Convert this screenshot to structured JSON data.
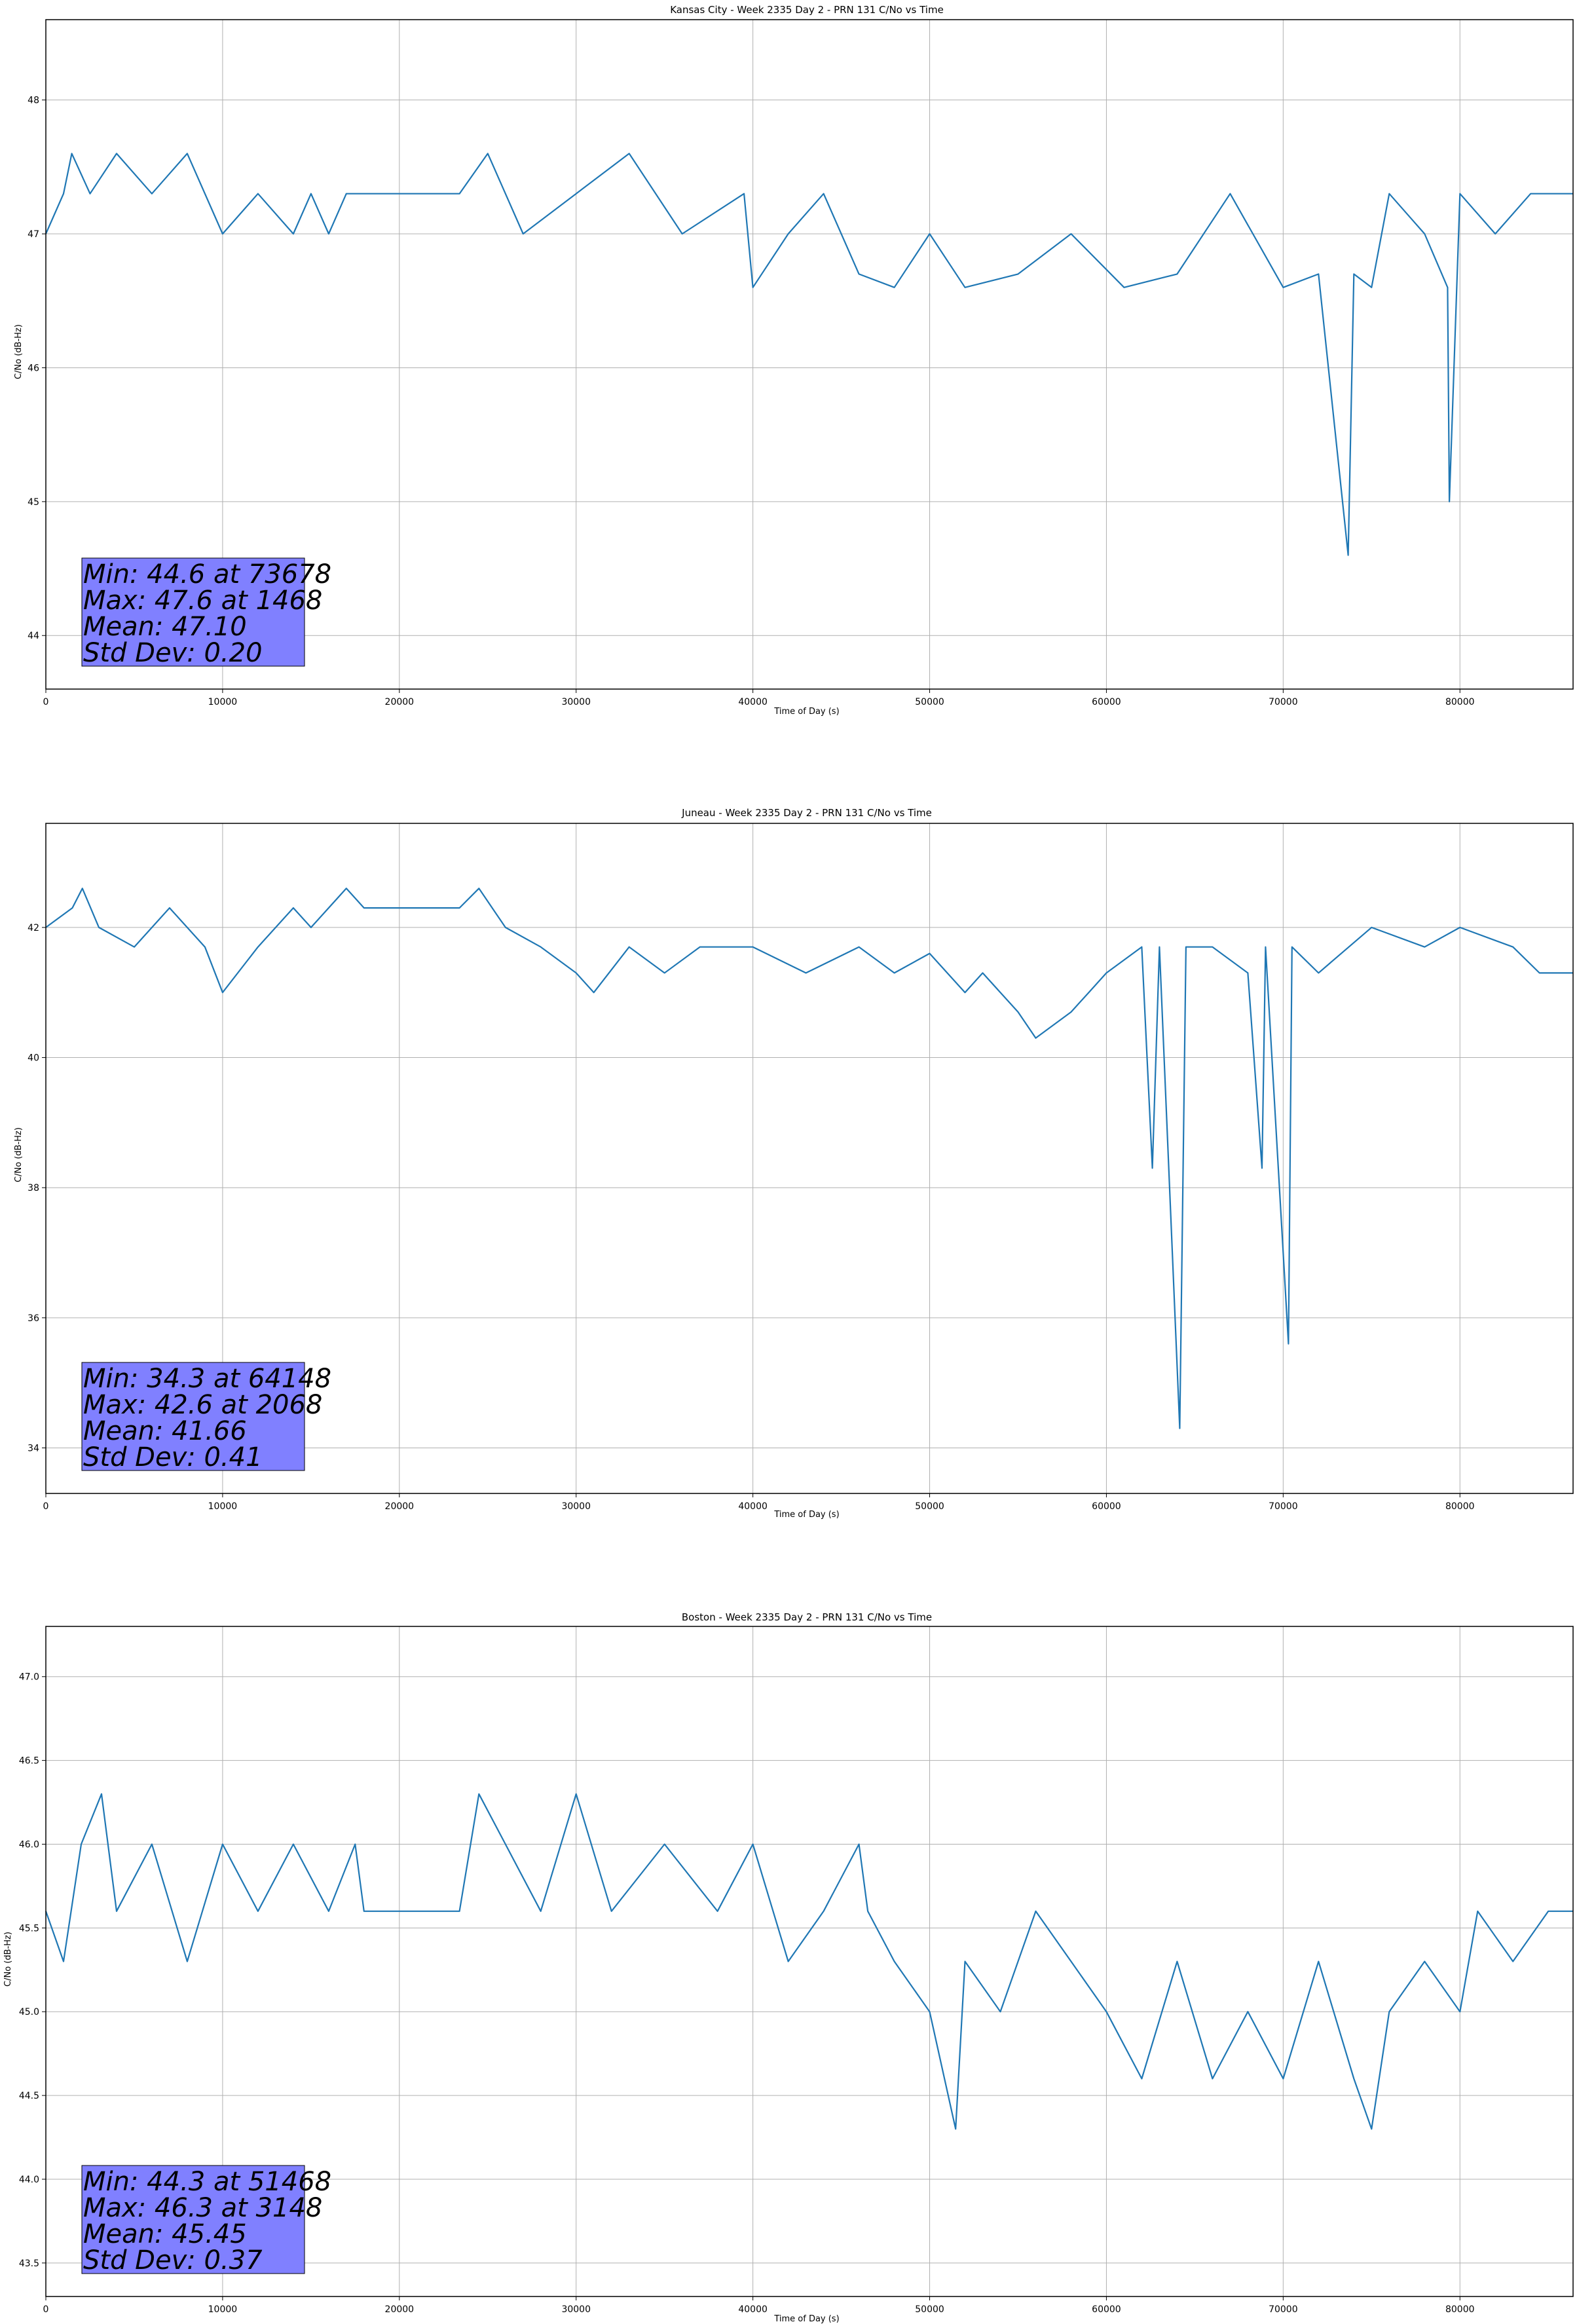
{
  "chart_data": [
    {
      "type": "line",
      "title": "Kansas City - Week 2335 Day 2 - PRN 131 C/No vs Time",
      "xlabel": "Time of Day (s)",
      "ylabel": "C/No (dB-Hz)",
      "xlim": [
        0,
        86400
      ],
      "ylim": [
        43.6,
        48.6
      ],
      "xticks": [
        0,
        10000,
        20000,
        30000,
        40000,
        50000,
        60000,
        70000,
        80000
      ],
      "yticks": [
        44,
        45,
        46,
        47,
        48
      ],
      "grid": true,
      "line_color": "#1f77b4",
      "stats_box_color": "#8080ff",
      "stats": [
        "Min: 44.6 at 73678",
        "Max: 47.6 at 1468",
        "Mean: 47.10",
        "Std Dev: 0.20"
      ],
      "series": [
        {
          "x": [
            0,
            1000,
            1468,
            2500,
            4000,
            6000,
            8000,
            10000,
            12000,
            14000,
            15000,
            16000,
            17000,
            18000,
            20000,
            22000,
            23400,
            25000,
            27000,
            30000,
            33000,
            36000,
            39500,
            40000,
            42000,
            44000,
            46000,
            48000,
            50000,
            52000,
            55000,
            58000,
            61000,
            64000,
            67000,
            70000,
            72000,
            73678,
            74000,
            75000,
            76000,
            78000,
            79300,
            79400,
            80000,
            82000,
            84000,
            86400
          ],
          "y": [
            47.0,
            47.3,
            47.6,
            47.3,
            47.6,
            47.3,
            47.6,
            47.0,
            47.3,
            47.0,
            47.3,
            47.0,
            47.3,
            47.3,
            47.3,
            47.3,
            47.3,
            47.6,
            47.0,
            47.3,
            47.6,
            47.0,
            47.3,
            46.6,
            47.0,
            47.3,
            46.7,
            46.6,
            47.0,
            46.6,
            46.7,
            47.0,
            46.6,
            46.7,
            47.3,
            46.6,
            46.7,
            44.6,
            46.7,
            46.6,
            47.3,
            47.0,
            46.6,
            45.0,
            47.3,
            47.0,
            47.3,
            47.3
          ]
        }
      ]
    },
    {
      "type": "line",
      "title": "Juneau - Week 2335 Day 2 - PRN 131 C/No vs Time",
      "xlabel": "Time of Day (s)",
      "ylabel": "C/No (dB-Hz)",
      "xlim": [
        0,
        86400
      ],
      "ylim": [
        33.3,
        43.6
      ],
      "xticks": [
        0,
        10000,
        20000,
        30000,
        40000,
        50000,
        60000,
        70000,
        80000
      ],
      "yticks": [
        34,
        36,
        38,
        40,
        42
      ],
      "grid": true,
      "line_color": "#1f77b4",
      "stats_box_color": "#8080ff",
      "stats": [
        "Min: 34.3 at 64148",
        "Max: 42.6 at 2068",
        "Mean: 41.66",
        "Std Dev: 0.41"
      ],
      "series": [
        {
          "x": [
            0,
            1500,
            2068,
            3000,
            5000,
            7000,
            9000,
            10000,
            12000,
            14000,
            15000,
            17000,
            18000,
            20000,
            23400,
            24500,
            26000,
            28000,
            30000,
            31000,
            33000,
            35000,
            37000,
            40000,
            43000,
            46000,
            48000,
            50000,
            52000,
            53000,
            55000,
            56000,
            58000,
            59000,
            60000,
            62000,
            62600,
            63000,
            64148,
            64500,
            66000,
            68000,
            68800,
            69000,
            70300,
            70500,
            72000,
            75000,
            78000,
            80000,
            83000,
            84500,
            86400
          ],
          "y": [
            42.0,
            42.3,
            42.6,
            42.0,
            41.7,
            42.3,
            41.7,
            41.0,
            41.7,
            42.3,
            42.0,
            42.6,
            42.3,
            42.3,
            42.3,
            42.6,
            42.0,
            41.7,
            41.3,
            41.0,
            41.7,
            41.3,
            41.7,
            41.7,
            41.3,
            41.7,
            41.3,
            41.6,
            41.0,
            41.3,
            40.7,
            40.3,
            40.7,
            41.0,
            41.3,
            41.7,
            38.3,
            41.7,
            34.3,
            41.7,
            41.7,
            41.3,
            38.3,
            41.7,
            35.6,
            41.7,
            41.3,
            42.0,
            41.7,
            42.0,
            41.7,
            41.3,
            41.3
          ]
        }
      ]
    },
    {
      "type": "line",
      "title": "Boston - Week 2335 Day 2 - PRN 131 C/No vs Time",
      "xlabel": "Time of Day (s)",
      "ylabel": "C/No (dB-Hz)",
      "xlim": [
        0,
        86400
      ],
      "ylim": [
        43.3,
        47.3
      ],
      "xticks": [
        0,
        10000,
        20000,
        30000,
        40000,
        50000,
        60000,
        70000,
        80000
      ],
      "yticks": [
        43.5,
        44.0,
        44.5,
        45.0,
        45.5,
        46.0,
        46.5,
        47.0
      ],
      "grid": true,
      "line_color": "#1f77b4",
      "stats_box_color": "#8080ff",
      "stats": [
        "Min: 44.3 at 51468",
        "Max: 46.3 at 3148",
        "Mean: 45.45",
        "Std Dev: 0.37"
      ],
      "series": [
        {
          "x": [
            0,
            1000,
            2000,
            3148,
            4000,
            6000,
            8000,
            10000,
            12000,
            14000,
            16000,
            17500,
            18000,
            20000,
            23400,
            24500,
            26000,
            28000,
            30000,
            32000,
            35000,
            38000,
            40000,
            42000,
            44000,
            46000,
            46500,
            48000,
            50000,
            51468,
            52000,
            54000,
            56000,
            58000,
            60000,
            62000,
            64000,
            66000,
            68000,
            70000,
            72000,
            74000,
            75000,
            76000,
            78000,
            80000,
            81000,
            83000,
            85000,
            86400
          ],
          "y": [
            45.6,
            45.3,
            46.0,
            46.3,
            45.6,
            46.0,
            45.3,
            46.0,
            45.6,
            46.0,
            45.6,
            46.0,
            45.6,
            45.6,
            45.6,
            46.3,
            46.0,
            45.6,
            46.3,
            45.6,
            46.0,
            45.6,
            46.0,
            45.3,
            45.6,
            46.0,
            45.6,
            45.3,
            45.0,
            44.3,
            45.3,
            45.0,
            45.6,
            45.3,
            45.0,
            44.6,
            45.3,
            44.6,
            45.0,
            44.6,
            45.3,
            44.6,
            44.3,
            45.0,
            45.3,
            45.0,
            45.6,
            45.3,
            45.6,
            45.6
          ]
        }
      ]
    }
  ]
}
